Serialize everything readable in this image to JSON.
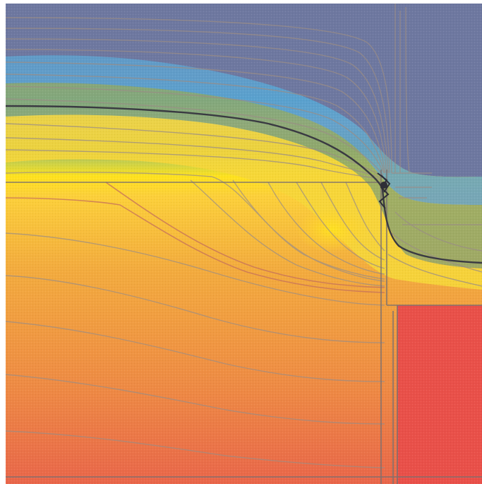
{
  "figure": {
    "type": "thermal-isotherm-simulation",
    "colors": {
      "background": "#ffffff",
      "cold": "#6e78a0",
      "cool_blue": "#3aa8d8",
      "mid_green": "#8aa870",
      "warm_yellow": "#ffe21e",
      "warm_orange": "#f3ac3e",
      "hot": "#e9664a",
      "hot_region": "#e95049",
      "isotherm_line": "#9a8d86",
      "isotherm_line_hot": "#c8745a",
      "threshold_line": "#3a3a42",
      "outline": "#7a7070"
    },
    "regions": [
      "exterior-cold-region",
      "upper-wall-layer",
      "lower-wall-layer",
      "interior-frame-region",
      "hot-interior-region"
    ],
    "isotherm_count": 40,
    "highlighted_isotherm": "dark-threshold-isotherm"
  }
}
